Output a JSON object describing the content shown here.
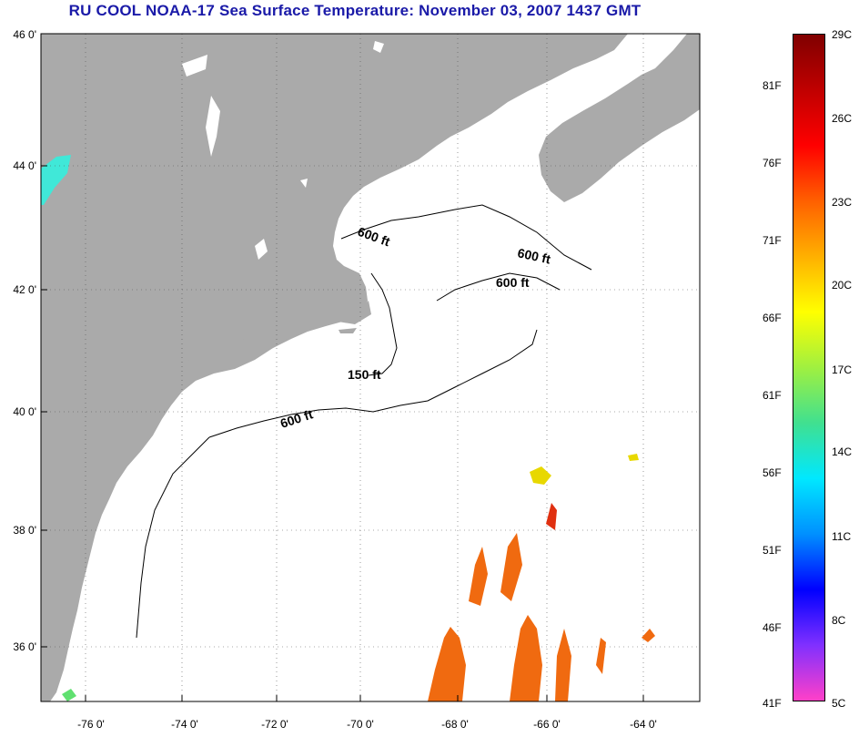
{
  "title": "RU COOL  NOAA-17  Sea Surface Temperature:  November 03, 2007 1437 GMT",
  "lat_labels": [
    "46 0'",
    "44 0'",
    "42 0'",
    "40 0'",
    "38 0'",
    "36 0'"
  ],
  "lon_labels": [
    "-76 0'",
    "-74 0'",
    "-72 0'",
    "-70 0'",
    "-68 0'",
    "-66 0'",
    "-64 0'"
  ],
  "contour_labels": [
    "600 ft",
    "600 ft",
    "600 ft",
    "150 ft",
    "600 ft"
  ],
  "colorbar": {
    "fahrenheit": [
      "81F",
      "76F",
      "71F",
      "66F",
      "61F",
      "56F",
      "51F",
      "46F",
      "41F"
    ],
    "celsius": [
      "29C",
      "26C",
      "23C",
      "20C",
      "17C",
      "14C",
      "11C",
      "8C",
      "5C"
    ],
    "colors": [
      "#ff40c8",
      "#8030ff",
      "#0000ff",
      "#0090ff",
      "#00e8ff",
      "#40e090",
      "#a0f040",
      "#ffff00",
      "#ffb000",
      "#ff6000",
      "#ff0000",
      "#c00000",
      "#800000"
    ]
  },
  "colors": {
    "land": "#aaaaaa",
    "ocean": "#ffffff",
    "title": "#1a1aa8",
    "sst_warm": "#f06a10",
    "sst_yellow": "#e8d800",
    "sst_red": "#e03010"
  }
}
